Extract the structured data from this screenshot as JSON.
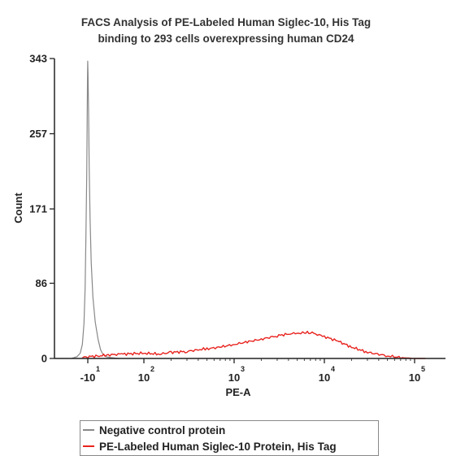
{
  "chart_data": {
    "type": "line",
    "title_lines": [
      "FACS Analysis of PE-Labeled Human Siglec-10, His Tag",
      "binding to 293 cells overexpressing human CD24"
    ],
    "xlabel": "PE-A",
    "ylabel": "Count",
    "x_scale": "biexponential",
    "x_ticks": [
      {
        "value": -10,
        "base": "-10",
        "exp": "1"
      },
      {
        "value": 100,
        "base": "10",
        "exp": "2"
      },
      {
        "value": 1000,
        "base": "10",
        "exp": "3"
      },
      {
        "value": 10000,
        "base": "10",
        "exp": "4"
      },
      {
        "value": 100000,
        "base": "10",
        "exp": "5"
      }
    ],
    "y_ticks": [
      "0",
      "86",
      "171",
      "257",
      "343"
    ],
    "ylim": [
      0,
      343
    ],
    "grid": false,
    "legend_position": "bottom",
    "series": [
      {
        "name": "Negative control protein",
        "color": "#888888",
        "x": [
          -40,
          -30,
          -24,
          -20,
          -17,
          -15,
          -13.5,
          -12,
          -11.2,
          -10.6,
          -10.1,
          -9.8,
          -9.3,
          -8.8,
          -8,
          -7,
          -5.5,
          -3.5,
          -1,
          3,
          8,
          15,
          25,
          35,
          45
        ],
        "y": [
          0,
          2,
          6,
          16,
          40,
          80,
          140,
          210,
          270,
          318,
          340,
          325,
          280,
          220,
          160,
          110,
          70,
          42,
          22,
          10,
          5,
          2,
          1,
          0.5,
          0
        ]
      },
      {
        "name": "PE-Labeled Human Siglec-10 Protein, His Tag",
        "color": "#e8231e",
        "x": [
          -20,
          -10,
          0,
          20,
          50,
          100,
          150,
          200,
          300,
          400,
          500,
          700,
          1000,
          1400,
          2000,
          3000,
          4000,
          5000,
          6000,
          7000,
          8000,
          10000,
          14000,
          20000,
          30000,
          50000,
          70000,
          100000,
          130000
        ],
        "y": [
          1,
          2,
          3,
          4,
          5,
          6,
          5,
          7,
          8,
          10,
          11,
          13,
          16,
          19,
          22,
          26,
          28,
          29,
          29,
          30,
          28,
          25,
          20,
          13,
          7,
          3,
          1,
          0,
          0
        ]
      }
    ]
  }
}
